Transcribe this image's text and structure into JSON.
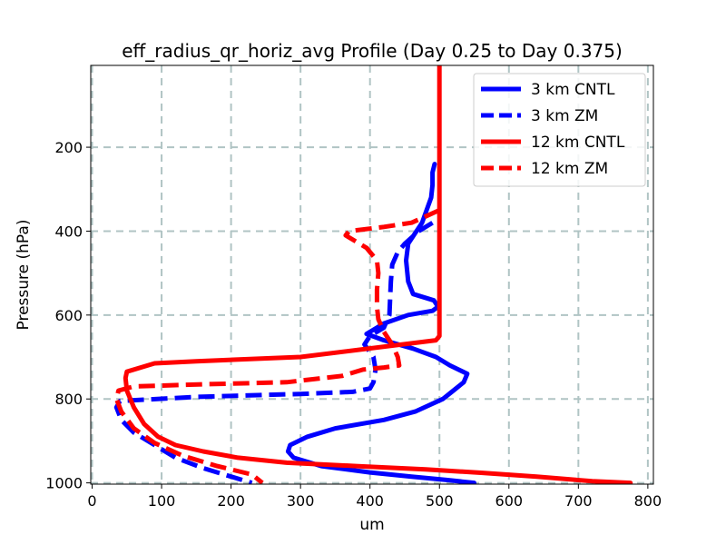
{
  "chart_data": {
    "type": "line",
    "title": "eff_radius_qr_horiz_avg Profile (Day 0.25 to Day 0.375)",
    "xlabel": "um",
    "ylabel": "Pressure (hPa)",
    "xlim": [
      -2,
      808
    ],
    "ylim": [
      1003,
      5
    ],
    "y_inverted": true,
    "xticks": [
      0,
      100,
      200,
      300,
      400,
      500,
      600,
      700,
      800
    ],
    "yticks": [
      200,
      400,
      600,
      800,
      1000
    ],
    "grid": true,
    "legend_position": "top-right",
    "series": [
      {
        "name": "3 km CNTL",
        "color": "#0000ff",
        "dash": "solid",
        "points": [
          [
            493,
            240
          ],
          [
            490,
            260
          ],
          [
            490,
            290
          ],
          [
            488,
            320
          ],
          [
            475,
            380
          ],
          [
            455,
            430
          ],
          [
            452,
            470
          ],
          [
            455,
            520
          ],
          [
            462,
            550
          ],
          [
            492,
            565
          ],
          [
            498,
            580
          ],
          [
            490,
            590
          ],
          [
            455,
            600
          ],
          [
            420,
            620
          ],
          [
            395,
            645
          ],
          [
            420,
            660
          ],
          [
            462,
            680
          ],
          [
            495,
            700
          ],
          [
            515,
            720
          ],
          [
            540,
            740
          ],
          [
            535,
            760
          ],
          [
            520,
            780
          ],
          [
            505,
            800
          ],
          [
            465,
            830
          ],
          [
            420,
            850
          ],
          [
            350,
            870
          ],
          [
            310,
            890
          ],
          [
            285,
            910
          ],
          [
            282,
            925
          ],
          [
            290,
            940
          ],
          [
            330,
            960
          ],
          [
            400,
            975
          ],
          [
            460,
            985
          ],
          [
            510,
            993
          ],
          [
            550,
            1000
          ]
        ]
      },
      {
        "name": "3 km ZM",
        "color": "#0000ff",
        "dash": "dashed",
        "points": [
          [
            490,
            380
          ],
          [
            470,
            400
          ],
          [
            450,
            430
          ],
          [
            440,
            450
          ],
          [
            432,
            480
          ],
          [
            430,
            520
          ],
          [
            428,
            600
          ],
          [
            420,
            630
          ],
          [
            400,
            650
          ],
          [
            392,
            670
          ],
          [
            405,
            700
          ],
          [
            408,
            730
          ],
          [
            405,
            760
          ],
          [
            400,
            775
          ],
          [
            375,
            783
          ],
          [
            300,
            788
          ],
          [
            150,
            795
          ],
          [
            40,
            805
          ],
          [
            35,
            820
          ],
          [
            42,
            850
          ],
          [
            60,
            880
          ],
          [
            90,
            910
          ],
          [
            120,
            940
          ],
          [
            160,
            965
          ],
          [
            200,
            985
          ],
          [
            230,
            1000
          ]
        ]
      },
      {
        "name": "12 km CNTL",
        "color": "#ff0000",
        "dash": "solid",
        "points": [
          [
            500,
            5
          ],
          [
            500,
            200
          ],
          [
            500,
            400
          ],
          [
            500,
            600
          ],
          [
            500,
            650
          ],
          [
            495,
            660
          ],
          [
            300,
            700
          ],
          [
            150,
            710
          ],
          [
            90,
            715
          ],
          [
            50,
            735
          ],
          [
            48,
            750
          ],
          [
            50,
            780
          ],
          [
            60,
            820
          ],
          [
            75,
            860
          ],
          [
            95,
            890
          ],
          [
            120,
            910
          ],
          [
            160,
            925
          ],
          [
            210,
            940
          ],
          [
            280,
            952
          ],
          [
            380,
            960
          ],
          [
            480,
            968
          ],
          [
            560,
            976
          ],
          [
            640,
            985
          ],
          [
            720,
            996
          ],
          [
            775,
            1000
          ]
        ]
      },
      {
        "name": "12 km ZM",
        "color": "#ff0000",
        "dash": "dashed",
        "points": [
          [
            500,
            350
          ],
          [
            460,
            380
          ],
          [
            420,
            390
          ],
          [
            370,
            400
          ],
          [
            365,
            410
          ],
          [
            395,
            440
          ],
          [
            410,
            470
          ],
          [
            412,
            500
          ],
          [
            410,
            540
          ],
          [
            410,
            580
          ],
          [
            412,
            610
          ],
          [
            420,
            640
          ],
          [
            432,
            670
          ],
          [
            440,
            700
          ],
          [
            442,
            720
          ],
          [
            420,
            725
          ],
          [
            390,
            730
          ],
          [
            360,
            745
          ],
          [
            280,
            760
          ],
          [
            160,
            765
          ],
          [
            60,
            770
          ],
          [
            38,
            780
          ],
          [
            35,
            800
          ],
          [
            42,
            830
          ],
          [
            60,
            870
          ],
          [
            90,
            905
          ],
          [
            130,
            935
          ],
          [
            180,
            960
          ],
          [
            230,
            980
          ],
          [
            245,
            1000
          ]
        ]
      }
    ]
  }
}
